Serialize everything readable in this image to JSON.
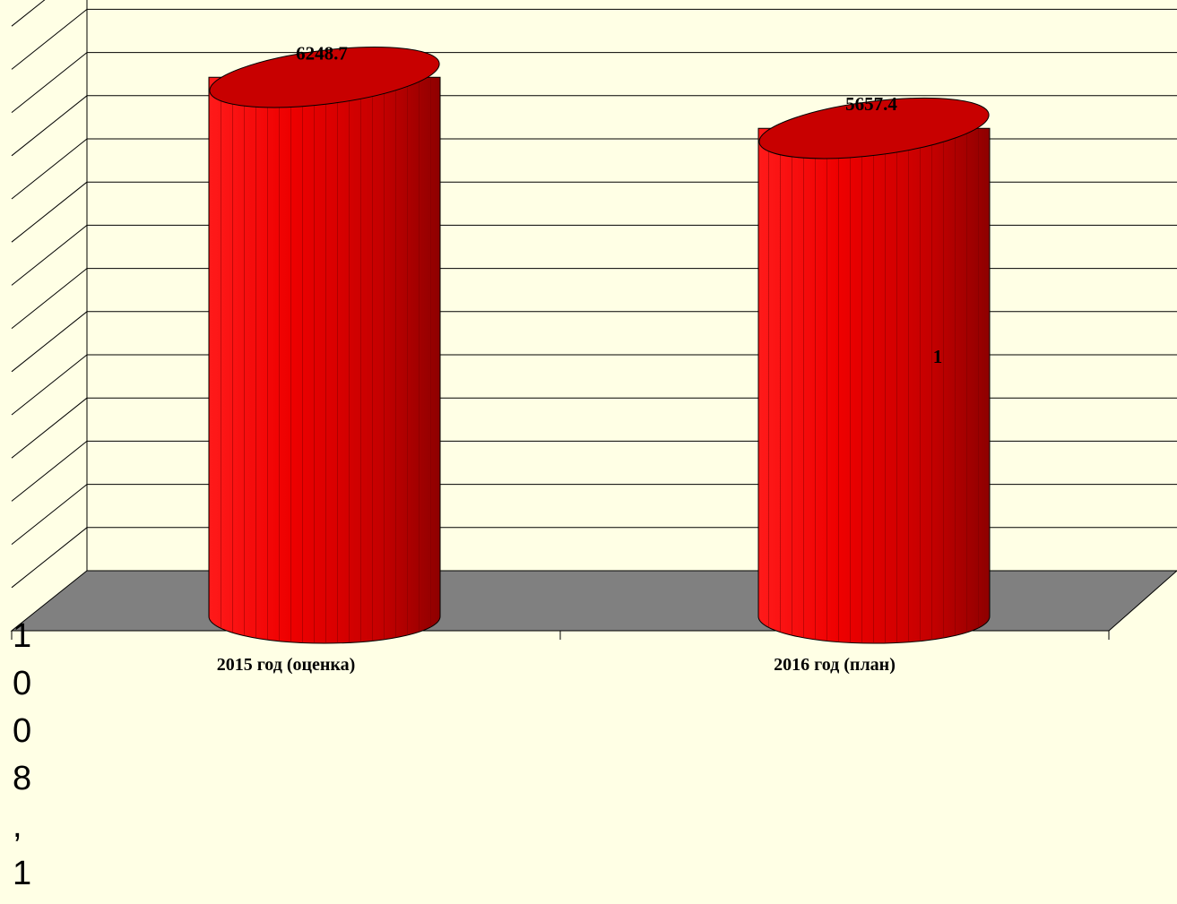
{
  "chart_data": {
    "type": "bar",
    "style": "3d-cylinder",
    "categories": [
      "2015 год (оценка)",
      "2016 год (план)"
    ],
    "series": [
      {
        "name": "1",
        "values": [
          6248.7,
          5657.4
        ],
        "color": "#e00000"
      }
    ],
    "data_labels": [
      "6248.7",
      "5657.4"
    ],
    "ylim": [
      0,
      7000
    ],
    "grid": true,
    "legend": "none",
    "colors": {
      "background": "#ffffe5",
      "floor": "#808080",
      "bar": "#e00000",
      "bar_top": "#c80000",
      "grid": "#000000"
    }
  },
  "stray_text": [
    "1",
    "0",
    "0",
    "8",
    ",",
    "1"
  ]
}
